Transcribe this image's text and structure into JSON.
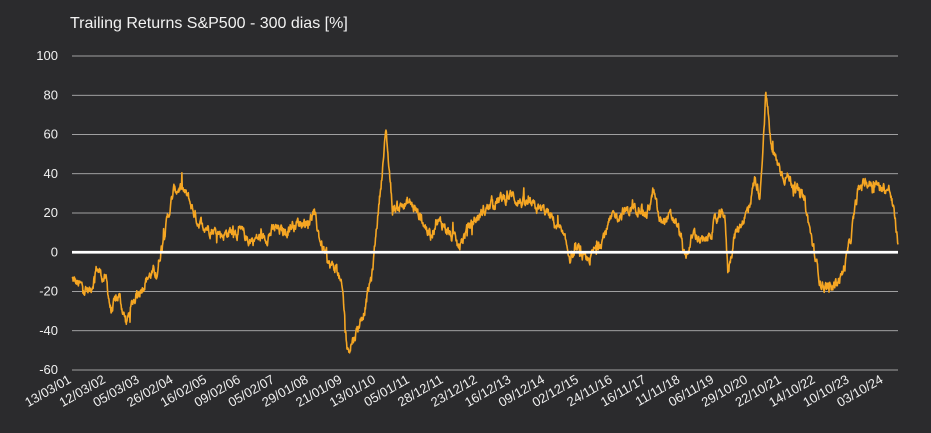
{
  "chart_data": {
    "type": "line",
    "title": "Trailing Returns S&P500 - 300 dias [%]",
    "xlabel": "",
    "ylabel": "",
    "ylim": [
      -60,
      100
    ],
    "yticks": [
      -60,
      -40,
      -20,
      0,
      20,
      40,
      60,
      80,
      100
    ],
    "xlim": [
      "2001-03-13",
      "2025-03-01"
    ],
    "xtick_labels": [
      "13/03/01",
      "12/03/02",
      "05/03/03",
      "26/02/04",
      "16/02/05",
      "09/02/06",
      "05/02/07",
      "29/01/08",
      "21/01/09",
      "13/01/10",
      "05/01/11",
      "28/12/11",
      "23/12/12",
      "16/12/13",
      "09/12/14",
      "02/12/15",
      "24/11/16",
      "16/11/17",
      "11/11/18",
      "06/11/19",
      "29/10/20",
      "22/10/21",
      "14/10/22",
      "10/10/23",
      "03/10/24"
    ],
    "grid": true,
    "line_color": "#f5a623",
    "zero_line_color": "#ffffff",
    "series": [
      {
        "x": [
          "2001-03-13",
          "2001-06-01",
          "2001-09-21",
          "2001-12-01",
          "2002-03-12",
          "2002-05-01",
          "2002-07-23",
          "2002-10-09",
          "2003-01-01",
          "2003-03-05",
          "2003-06-01",
          "2003-09-01",
          "2003-11-01",
          "2004-02-26",
          "2004-05-01",
          "2004-08-01",
          "2004-11-01",
          "2005-02-16",
          "2005-05-01",
          "2005-08-01",
          "2005-11-01",
          "2006-02-09",
          "2006-05-01",
          "2006-08-01",
          "2006-11-01",
          "2007-02-05",
          "2007-05-01",
          "2007-08-01",
          "2007-10-09",
          "2008-01-29",
          "2008-03-17",
          "2008-06-01",
          "2008-09-01",
          "2008-11-20",
          "2009-01-21",
          "2009-03-09",
          "2009-06-01",
          "2009-09-01",
          "2009-12-01",
          "2010-01-13",
          "2010-03-01",
          "2010-04-23",
          "2010-07-01",
          "2010-10-01",
          "2011-01-05",
          "2011-04-29",
          "2011-08-08",
          "2011-10-03",
          "2011-12-28",
          "2012-04-01",
          "2012-06-01",
          "2012-09-14",
          "2012-12-23",
          "2013-05-21",
          "2013-09-01",
          "2013-12-16",
          "2014-03-01",
          "2014-06-01",
          "2014-09-18",
          "2014-12-09",
          "2015-03-01",
          "2015-05-20",
          "2015-08-24",
          "2015-12-02",
          "2016-02-11",
          "2016-06-27",
          "2016-11-24",
          "2017-03-01",
          "2017-06-01",
          "2017-09-01",
          "2017-11-16",
          "2018-01-26",
          "2018-04-01",
          "2018-07-01",
          "2018-09-20",
          "2018-11-11",
          "2018-12-24",
          "2019-04-01",
          "2019-07-26",
          "2019-11-06",
          "2020-02-19",
          "2020-03-23",
          "2020-06-01",
          "2020-08-01",
          "2020-10-29",
          "2021-01-01",
          "2021-03-01",
          "2021-05-01",
          "2021-07-01",
          "2021-10-22",
          "2022-01-03",
          "2022-06-16",
          "2022-10-14",
          "2022-12-01",
          "2023-03-13",
          "2023-07-31",
          "2023-10-10",
          "2023-12-29",
          "2024-03-01",
          "2024-07-16",
          "2024-10-03",
          "2024-12-06",
          "2025-01-15",
          "2025-03-01"
        ],
        "values": [
          -14,
          -17,
          -20,
          -8,
          -15,
          -30,
          -22,
          -36,
          -24,
          -19,
          -12,
          -10,
          7,
          31,
          33,
          27,
          16,
          13,
          11,
          9,
          11,
          10,
          6,
          7,
          8,
          12,
          10,
          14,
          15,
          16,
          20,
          5,
          -7,
          -8,
          -22,
          -50,
          -42,
          -30,
          -10,
          13,
          35,
          62,
          22,
          24,
          25,
          18,
          8,
          16,
          14,
          7,
          2,
          13,
          18,
          25,
          27,
          29,
          26,
          24,
          22,
          21,
          16,
          10,
          -2,
          1,
          -6,
          4,
          18,
          20,
          22,
          24,
          19,
          31,
          15,
          18,
          16,
          8,
          -4,
          10,
          4,
          15,
          20,
          -10,
          8,
          14,
          22,
          37,
          30,
          82,
          52,
          40,
          38,
          25,
          -5,
          -15,
          -20,
          -10,
          5,
          30,
          36,
          34,
          33,
          31,
          21,
          4
        ]
      }
    ]
  }
}
